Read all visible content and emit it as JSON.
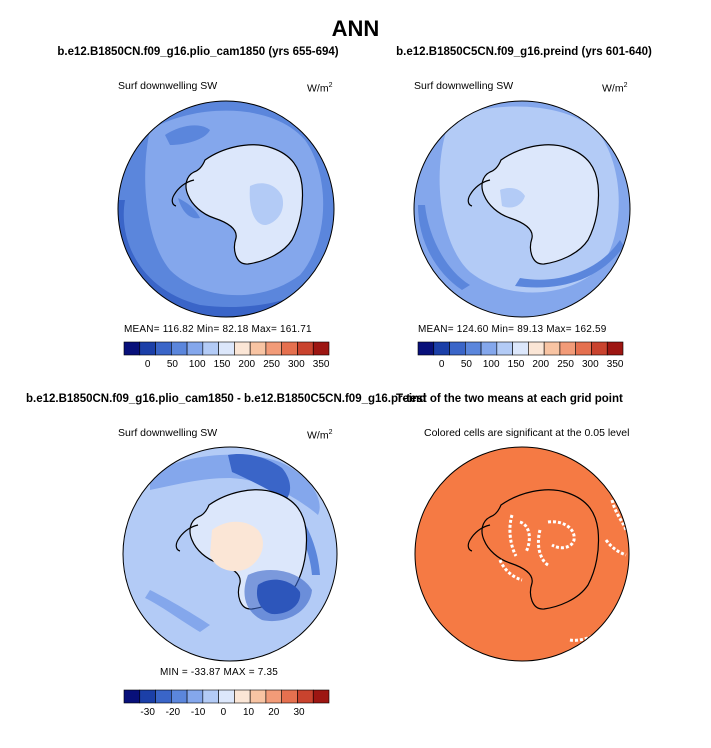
{
  "figure": {
    "title": "ANN"
  },
  "chart_data": [
    {
      "type": "heatmap",
      "projection": "south-polar-stereographic",
      "title": "b.e12.B1850CN.f09_g16.plio_cam1850 (yrs 655-694)",
      "left_label": "Surf downwelling SW",
      "units_label": "W/m",
      "units_sup": "2",
      "stats": "MEAN= 116.82  Min=  82.18  Max= 161.71",
      "colorbar": {
        "levels": [
          "0",
          "50",
          "100",
          "150",
          "200",
          "250",
          "300",
          "350"
        ],
        "colors": [
          "#08107a",
          "#1b3fa8",
          "#3a65c8",
          "#5b86dc",
          "#84a7ec",
          "#b3cbf6",
          "#dce7fb",
          "#fbe6d6",
          "#f8c4a3",
          "#f29b78",
          "#e5704f",
          "#c9432e",
          "#9d1612"
        ]
      },
      "field_colors": {
        "ocean_far": "#5b86dc",
        "ocean_mid": "#84a7ec",
        "land": "#dce7fb",
        "band": "#3a65c8"
      }
    },
    {
      "type": "heatmap",
      "projection": "south-polar-stereographic",
      "title": "b.e12.B1850C5CN.f09_g16.preind (yrs 601-640)",
      "left_label": "Surf downwelling SW",
      "units_label": "W/m",
      "units_sup": "2",
      "stats": "MEAN= 124.60  Min=  89.13  Max= 162.59",
      "colorbar": {
        "levels": [
          "0",
          "50",
          "100",
          "150",
          "200",
          "250",
          "300",
          "350"
        ],
        "colors": [
          "#08107a",
          "#1b3fa8",
          "#3a65c8",
          "#5b86dc",
          "#84a7ec",
          "#b3cbf6",
          "#dce7fb",
          "#fbe6d6",
          "#f8c4a3",
          "#f29b78",
          "#e5704f",
          "#c9432e",
          "#9d1612"
        ]
      },
      "field_colors": {
        "ocean_far": "#84a7ec",
        "ocean_mid": "#b3cbf6",
        "land": "#dce7fb",
        "band": "#5b86dc"
      }
    },
    {
      "type": "heatmap",
      "projection": "south-polar-stereographic",
      "title": "b.e12.B1850CN.f09_g16.plio_cam1850 - b.e12.B1850C5CN.f09_g16.preind",
      "left_label": "Surf downwelling SW",
      "units_label": "W/m",
      "units_sup": "2",
      "stats": "MIN = -33.87 MAX =    7.35",
      "colorbar": {
        "levels": [
          "-30",
          "-20",
          "-10",
          "0",
          "10",
          "20",
          "30"
        ],
        "colors": [
          "#08107a",
          "#1b3fa8",
          "#3a65c8",
          "#5b86dc",
          "#84a7ec",
          "#b3cbf6",
          "#dce7fb",
          "#fbe6d6",
          "#f8c4a3",
          "#f29b78",
          "#e5704f",
          "#c9432e",
          "#9d1612"
        ]
      },
      "field_colors": {
        "ocean_far": "#b3cbf6",
        "ocean_mid": "#84a7ec",
        "land": "#dce7fb",
        "band": "#3a65c8",
        "positive": "#fbe6d6"
      }
    },
    {
      "type": "heatmap",
      "projection": "south-polar-stereographic",
      "title": "T-test of the two means at each grid point",
      "center_label": "Colored cells are significant at the 0.05 level",
      "significance_level": 0.05,
      "field_colors": {
        "significant": "#f57a44",
        "not_significant": "#ffffff"
      }
    }
  ]
}
